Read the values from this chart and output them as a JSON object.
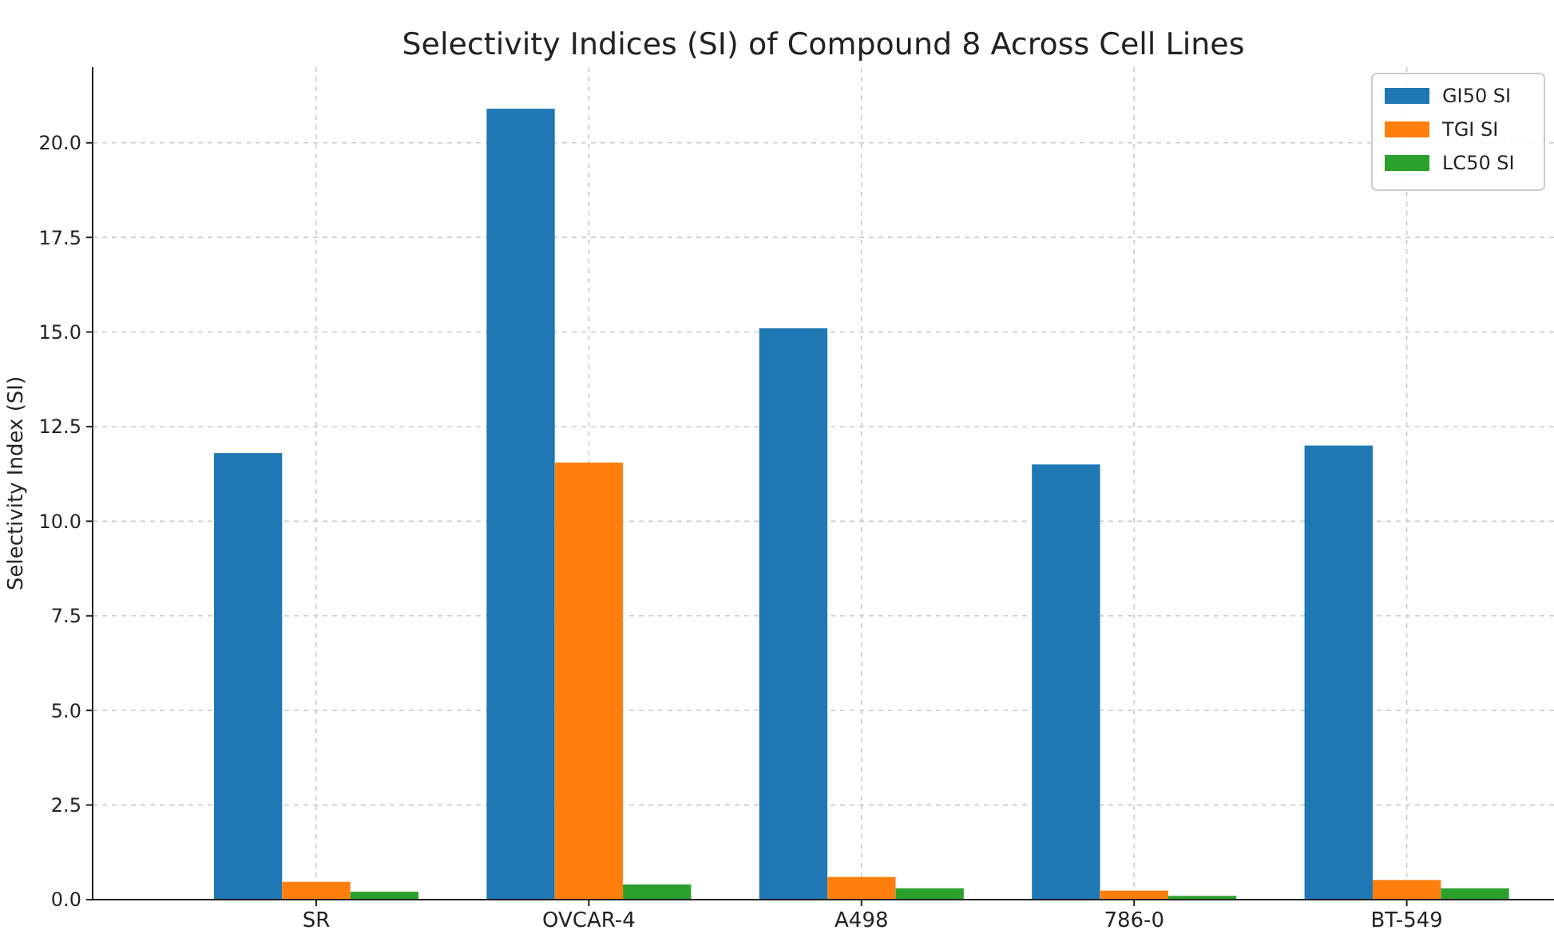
{
  "chart_data": {
    "type": "bar",
    "title": "Selectivity Indices (SI) of Compound 8 Across Cell Lines",
    "ylabel": "Selectivity Index (SI)",
    "categories": [
      "SR",
      "OVCAR-4",
      "A498",
      "786-0",
      "BT-549"
    ],
    "series": [
      {
        "name": "GI50 SI",
        "color": "#1f77b4",
        "values": [
          11.8,
          20.9,
          15.1,
          11.5,
          12.0
        ]
      },
      {
        "name": "TGI SI",
        "color": "#ff7f0e",
        "values": [
          0.47,
          11.55,
          0.6,
          0.24,
          0.52
        ]
      },
      {
        "name": "LC50 SI",
        "color": "#2ca02c",
        "values": [
          0.21,
          0.4,
          0.3,
          0.1,
          0.3
        ]
      }
    ],
    "ylim": [
      0,
      22
    ],
    "yticks": [
      {
        "value": 0,
        "label": "0.0"
      },
      {
        "value": 2.5,
        "label": "2.5"
      },
      {
        "value": 5,
        "label": "5.0"
      },
      {
        "value": 7.5,
        "label": "7.5"
      },
      {
        "value": 10,
        "label": "10.0"
      },
      {
        "value": 12.5,
        "label": "12.5"
      },
      {
        "value": 15,
        "label": "15.0"
      },
      {
        "value": 17.5,
        "label": "17.5"
      },
      {
        "value": 20,
        "label": "20.0"
      }
    ],
    "grid": true,
    "legend": "top right"
  }
}
